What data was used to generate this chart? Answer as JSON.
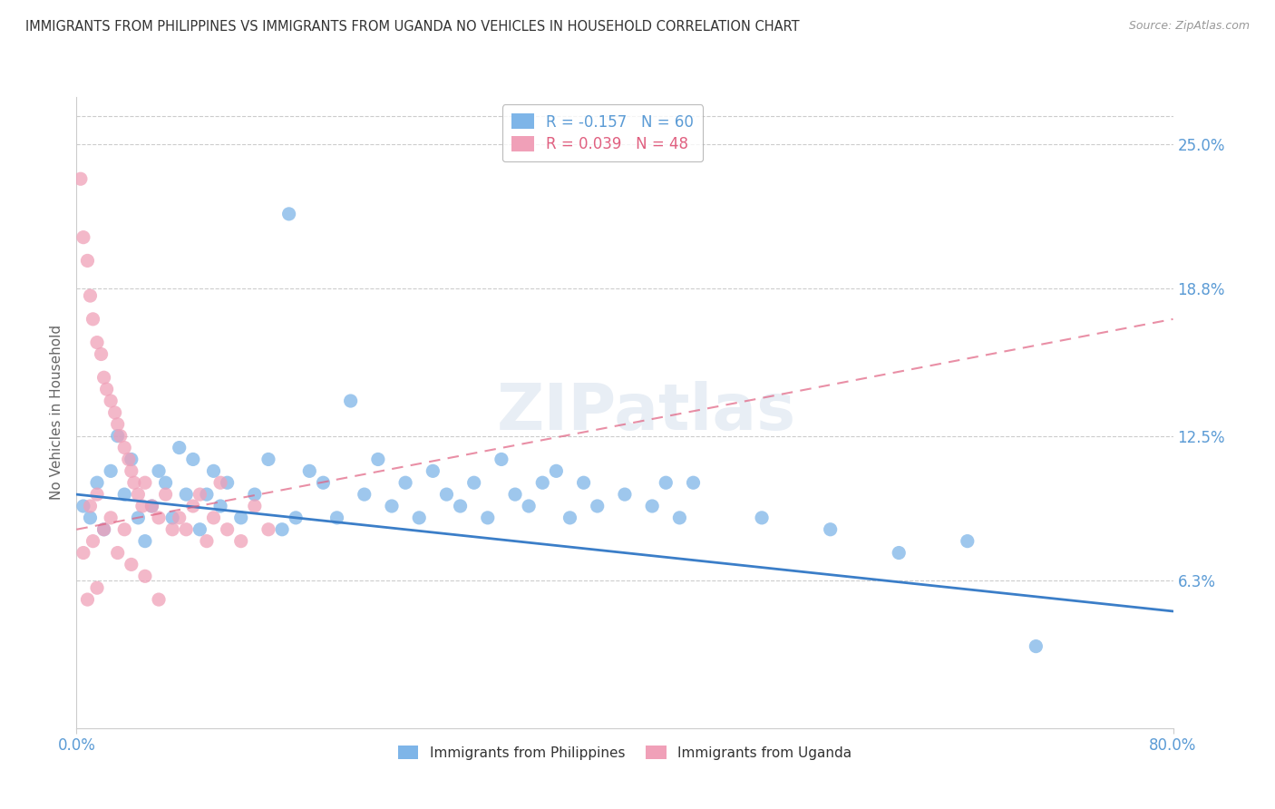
{
  "title": "IMMIGRANTS FROM PHILIPPINES VS IMMIGRANTS FROM UGANDA NO VEHICLES IN HOUSEHOLD CORRELATION CHART",
  "source": "Source: ZipAtlas.com",
  "ylabel": "No Vehicles in Household",
  "x_tick_labels": [
    "0.0%",
    "80.0%"
  ],
  "y_tick_labels": [
    "6.3%",
    "12.5%",
    "18.8%",
    "25.0%"
  ],
  "y_tick_values": [
    6.3,
    12.5,
    18.8,
    25.0
  ],
  "x_min": 0.0,
  "x_max": 80.0,
  "y_min": 0.0,
  "y_max": 27.0,
  "philippines_color": "#7EB5E8",
  "philippines_line_color": "#3B7EC8",
  "uganda_color": "#F0A0B8",
  "uganda_line_color": "#E06080",
  "philippines_R": -0.157,
  "philippines_N": 60,
  "uganda_R": 0.039,
  "uganda_N": 48,
  "watermark": "ZIPatlas",
  "philippines_scatter": [
    [
      0.5,
      9.5
    ],
    [
      1.0,
      9.0
    ],
    [
      1.5,
      10.5
    ],
    [
      2.0,
      8.5
    ],
    [
      2.5,
      11.0
    ],
    [
      3.0,
      12.5
    ],
    [
      3.5,
      10.0
    ],
    [
      4.0,
      11.5
    ],
    [
      4.5,
      9.0
    ],
    [
      5.0,
      8.0
    ],
    [
      5.5,
      9.5
    ],
    [
      6.0,
      11.0
    ],
    [
      6.5,
      10.5
    ],
    [
      7.0,
      9.0
    ],
    [
      7.5,
      12.0
    ],
    [
      8.0,
      10.0
    ],
    [
      8.5,
      11.5
    ],
    [
      9.0,
      8.5
    ],
    [
      9.5,
      10.0
    ],
    [
      10.0,
      11.0
    ],
    [
      10.5,
      9.5
    ],
    [
      11.0,
      10.5
    ],
    [
      12.0,
      9.0
    ],
    [
      13.0,
      10.0
    ],
    [
      14.0,
      11.5
    ],
    [
      15.0,
      8.5
    ],
    [
      16.0,
      9.0
    ],
    [
      17.0,
      11.0
    ],
    [
      18.0,
      10.5
    ],
    [
      19.0,
      9.0
    ],
    [
      20.0,
      14.0
    ],
    [
      21.0,
      10.0
    ],
    [
      22.0,
      11.5
    ],
    [
      23.0,
      9.5
    ],
    [
      24.0,
      10.5
    ],
    [
      25.0,
      9.0
    ],
    [
      26.0,
      11.0
    ],
    [
      27.0,
      10.0
    ],
    [
      28.0,
      9.5
    ],
    [
      29.0,
      10.5
    ],
    [
      30.0,
      9.0
    ],
    [
      31.0,
      11.5
    ],
    [
      32.0,
      10.0
    ],
    [
      33.0,
      9.5
    ],
    [
      34.0,
      10.5
    ],
    [
      35.0,
      11.0
    ],
    [
      36.0,
      9.0
    ],
    [
      37.0,
      10.5
    ],
    [
      38.0,
      9.5
    ],
    [
      40.0,
      10.0
    ],
    [
      42.0,
      9.5
    ],
    [
      43.0,
      10.5
    ],
    [
      44.0,
      9.0
    ],
    [
      45.0,
      10.5
    ],
    [
      50.0,
      9.0
    ],
    [
      55.0,
      8.5
    ],
    [
      60.0,
      7.5
    ],
    [
      65.0,
      8.0
    ],
    [
      15.5,
      22.0
    ],
    [
      70.0,
      3.5
    ]
  ],
  "uganda_scatter": [
    [
      0.3,
      23.5
    ],
    [
      0.5,
      21.0
    ],
    [
      0.8,
      20.0
    ],
    [
      1.0,
      18.5
    ],
    [
      1.2,
      17.5
    ],
    [
      1.5,
      16.5
    ],
    [
      1.8,
      16.0
    ],
    [
      2.0,
      15.0
    ],
    [
      2.2,
      14.5
    ],
    [
      2.5,
      14.0
    ],
    [
      2.8,
      13.5
    ],
    [
      3.0,
      13.0
    ],
    [
      3.2,
      12.5
    ],
    [
      3.5,
      12.0
    ],
    [
      3.8,
      11.5
    ],
    [
      4.0,
      11.0
    ],
    [
      4.2,
      10.5
    ],
    [
      4.5,
      10.0
    ],
    [
      4.8,
      9.5
    ],
    [
      5.0,
      10.5
    ],
    [
      5.5,
      9.5
    ],
    [
      6.0,
      9.0
    ],
    [
      6.5,
      10.0
    ],
    [
      7.0,
      8.5
    ],
    [
      7.5,
      9.0
    ],
    [
      8.0,
      8.5
    ],
    [
      8.5,
      9.5
    ],
    [
      9.0,
      10.0
    ],
    [
      9.5,
      8.0
    ],
    [
      10.0,
      9.0
    ],
    [
      10.5,
      10.5
    ],
    [
      11.0,
      8.5
    ],
    [
      12.0,
      8.0
    ],
    [
      13.0,
      9.5
    ],
    [
      14.0,
      8.5
    ],
    [
      1.0,
      9.5
    ],
    [
      1.5,
      10.0
    ],
    [
      2.0,
      8.5
    ],
    [
      2.5,
      9.0
    ],
    [
      3.0,
      7.5
    ],
    [
      3.5,
      8.5
    ],
    [
      4.0,
      7.0
    ],
    [
      5.0,
      6.5
    ],
    [
      6.0,
      5.5
    ],
    [
      0.5,
      7.5
    ],
    [
      1.5,
      6.0
    ],
    [
      0.8,
      5.5
    ],
    [
      1.2,
      8.0
    ]
  ]
}
